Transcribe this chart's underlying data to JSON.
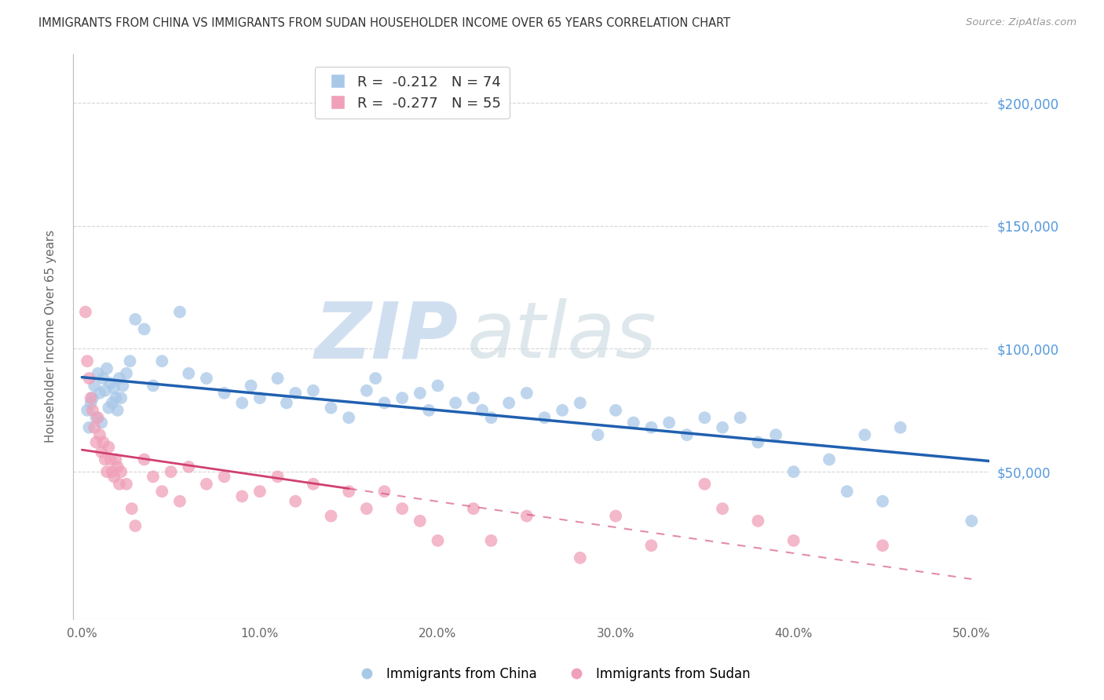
{
  "title": "IMMIGRANTS FROM CHINA VS IMMIGRANTS FROM SUDAN HOUSEHOLDER INCOME OVER 65 YEARS CORRELATION CHART",
  "source": "Source: ZipAtlas.com",
  "ylabel": "Householder Income Over 65 years",
  "xlabel_ticks": [
    "0.0%",
    "10.0%",
    "20.0%",
    "30.0%",
    "40.0%",
    "50.0%"
  ],
  "xlabel_vals": [
    0.0,
    10.0,
    20.0,
    30.0,
    40.0,
    50.0
  ],
  "ylim": [
    -10000,
    220000
  ],
  "xlim": [
    -0.5,
    51.0
  ],
  "yticks": [
    0,
    50000,
    100000,
    150000,
    200000
  ],
  "ytick_labels": [
    "",
    "$50,000",
    "$100,000",
    "$150,000",
    "$200,000"
  ],
  "china_color": "#a8c8e8",
  "china_line_color": "#2060b0",
  "sudan_color": "#f0a0b8",
  "sudan_line_color": "#d04070",
  "china_R": -0.212,
  "china_N": 74,
  "sudan_R": -0.277,
  "sudan_N": 55,
  "background_color": "#ffffff",
  "grid_color": "#cccccc",
  "watermark_zip": "ZIP",
  "watermark_atlas": "atlas",
  "watermark_color": "#d0dff0",
  "legend_r_color": "#22aacc",
  "legend_n_color": "#22aacc",
  "china_scatter_x": [
    0.3,
    0.4,
    0.5,
    0.6,
    0.7,
    0.8,
    0.9,
    1.0,
    1.1,
    1.2,
    1.3,
    1.4,
    1.5,
    1.6,
    1.7,
    1.8,
    1.9,
    2.0,
    2.1,
    2.2,
    2.3,
    2.5,
    2.7,
    3.0,
    3.5,
    4.0,
    4.5,
    5.5,
    6.0,
    7.0,
    8.0,
    9.0,
    9.5,
    10.0,
    11.0,
    11.5,
    12.0,
    13.0,
    14.0,
    15.0,
    16.0,
    16.5,
    17.0,
    18.0,
    19.0,
    19.5,
    20.0,
    21.0,
    22.0,
    22.5,
    23.0,
    24.0,
    25.0,
    26.0,
    27.0,
    28.0,
    29.0,
    30.0,
    31.0,
    32.0,
    33.0,
    34.0,
    35.0,
    36.0,
    37.0,
    38.0,
    39.0,
    40.0,
    42.0,
    43.0,
    44.0,
    45.0,
    46.0,
    50.0
  ],
  "china_scatter_y": [
    75000,
    68000,
    78000,
    80000,
    85000,
    72000,
    90000,
    82000,
    70000,
    88000,
    83000,
    92000,
    76000,
    86000,
    78000,
    84000,
    80000,
    75000,
    88000,
    80000,
    85000,
    90000,
    95000,
    112000,
    108000,
    85000,
    95000,
    115000,
    90000,
    88000,
    82000,
    78000,
    85000,
    80000,
    88000,
    78000,
    82000,
    83000,
    76000,
    72000,
    83000,
    88000,
    78000,
    80000,
    82000,
    75000,
    85000,
    78000,
    80000,
    75000,
    72000,
    78000,
    82000,
    72000,
    75000,
    78000,
    65000,
    75000,
    70000,
    68000,
    70000,
    65000,
    72000,
    68000,
    72000,
    62000,
    65000,
    50000,
    55000,
    42000,
    65000,
    38000,
    68000,
    30000
  ],
  "sudan_scatter_x": [
    0.2,
    0.3,
    0.4,
    0.5,
    0.6,
    0.7,
    0.8,
    0.9,
    1.0,
    1.1,
    1.2,
    1.3,
    1.4,
    1.5,
    1.6,
    1.7,
    1.8,
    1.9,
    2.0,
    2.1,
    2.2,
    2.5,
    2.8,
    3.0,
    3.5,
    4.0,
    4.5,
    5.0,
    5.5,
    6.0,
    7.0,
    8.0,
    9.0,
    10.0,
    11.0,
    12.0,
    13.0,
    14.0,
    15.0,
    16.0,
    17.0,
    18.0,
    19.0,
    20.0,
    22.0,
    23.0,
    25.0,
    28.0,
    30.0,
    32.0,
    35.0,
    36.0,
    38.0,
    40.0,
    45.0
  ],
  "sudan_scatter_y": [
    115000,
    95000,
    88000,
    80000,
    75000,
    68000,
    62000,
    72000,
    65000,
    58000,
    62000,
    55000,
    50000,
    60000,
    55000,
    50000,
    48000,
    55000,
    52000,
    45000,
    50000,
    45000,
    35000,
    28000,
    55000,
    48000,
    42000,
    50000,
    38000,
    52000,
    45000,
    48000,
    40000,
    42000,
    48000,
    38000,
    45000,
    32000,
    42000,
    35000,
    42000,
    35000,
    30000,
    22000,
    35000,
    22000,
    32000,
    15000,
    32000,
    20000,
    45000,
    35000,
    30000,
    22000,
    20000
  ]
}
